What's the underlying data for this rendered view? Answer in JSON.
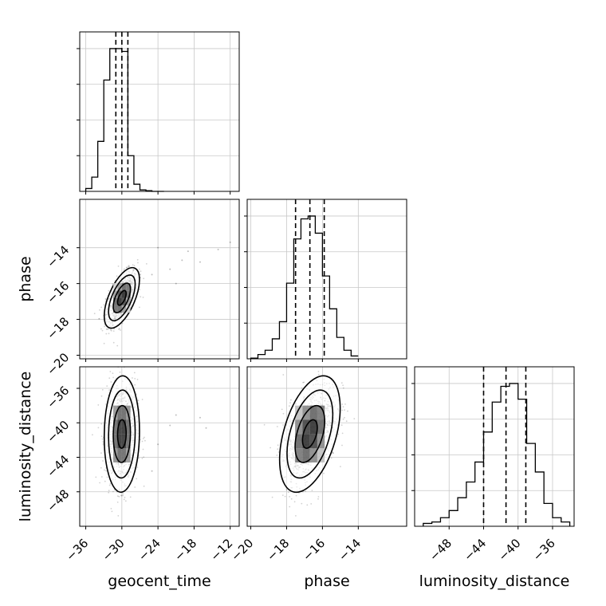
{
  "chart_data": {
    "type": "corner",
    "parameters": [
      "geocent_time",
      "phase",
      "luminosity_distance"
    ],
    "axis_labels": {
      "x": [
        "geocent_time",
        "phase",
        "luminosity_distance"
      ],
      "y": [
        "",
        "phase",
        "luminosity_distance"
      ]
    },
    "ranges": {
      "geocent_time": [
        -37,
        -10.5
      ],
      "phase": [
        -20.2,
        -11.3
      ],
      "luminosity_distance": [
        -52,
        -33.5
      ]
    },
    "ticks": {
      "geocent_time": [
        -36,
        -30,
        -24,
        -18,
        -12
      ],
      "phase": [
        -20,
        -18,
        -16,
        -14
      ],
      "luminosity_distance": [
        -48,
        -44,
        -40,
        -36
      ]
    },
    "tick_labels": {
      "geocent_time": [
        "−36",
        "−30",
        "−24",
        "−18",
        "−12"
      ],
      "phase": [
        "−20",
        "−18",
        "−16",
        "−14"
      ],
      "luminosity_distance": [
        "−48",
        "−44",
        "−40",
        "−36"
      ]
    },
    "histograms": {
      "geocent_time": {
        "bin_edges": [
          -36,
          -35,
          -34,
          -33,
          -32,
          -31,
          -30,
          -29,
          -28,
          -27,
          -26,
          -25,
          -24,
          -23
        ],
        "counts": [
          0.02,
          0.1,
          0.35,
          0.78,
          1.0,
          1.0,
          0.98,
          0.25,
          0.05,
          0.01,
          0.005,
          0.0,
          0.0
        ],
        "quantiles": [
          -31.0,
          -30.0,
          -29.0
        ]
      },
      "phase": {
        "bin_edges": [
          -20,
          -19.6,
          -19.2,
          -18.8,
          -18.4,
          -18.0,
          -17.6,
          -17.2,
          -16.8,
          -16.4,
          -16.0,
          -15.6,
          -15.2,
          -14.8,
          -14.4,
          -14.0
        ],
        "counts": [
          0.005,
          0.03,
          0.06,
          0.14,
          0.26,
          0.53,
          0.84,
          0.98,
          1.0,
          0.88,
          0.58,
          0.35,
          0.15,
          0.06,
          0.02
        ],
        "quantiles": [
          -17.5,
          -16.7,
          -15.9
        ]
      },
      "luminosity_distance": {
        "bin_edges": [
          -51,
          -50,
          -49,
          -48,
          -47,
          -46,
          -45,
          -44,
          -43,
          -42,
          -41,
          -40,
          -39,
          -38,
          -37,
          -36,
          -35,
          -34
        ],
        "counts": [
          0.02,
          0.03,
          0.06,
          0.11,
          0.2,
          0.31,
          0.45,
          0.66,
          0.87,
          0.98,
          1.0,
          0.89,
          0.58,
          0.38,
          0.16,
          0.06,
          0.03,
          0.0
        ],
        "quantiles": [
          -44.0,
          -41.4,
          -39.1
        ]
      }
    },
    "joint": [
      {
        "x": "geocent_time",
        "y": "phase",
        "mean": [
          -30.0,
          -16.8
        ],
        "std": [
          1.3,
          0.75
        ],
        "corr": 0.6,
        "outliers": [
          [
            -25,
            -15.5
          ],
          [
            -22,
            -15.2
          ],
          [
            -20,
            -14.7
          ],
          [
            -19,
            -14.2
          ],
          [
            -17,
            -14.8
          ],
          [
            -14,
            -14.1
          ],
          [
            -12,
            -13.7
          ],
          [
            -24,
            -14.0
          ],
          [
            -21,
            -16.0
          ]
        ]
      },
      {
        "x": "geocent_time",
        "y": "luminosity_distance",
        "mean": [
          -30.0,
          -41.3
        ],
        "std": [
          1.3,
          3.0
        ],
        "corr": 0.05,
        "outliers": [
          [
            -24,
            -42.5
          ],
          [
            -22,
            -40.3
          ],
          [
            -21,
            -39.1
          ],
          [
            -17,
            -39.4
          ],
          [
            -16,
            -40.6
          ],
          [
            -25,
            -45.6
          ]
        ]
      },
      {
        "x": "phase",
        "y": "luminosity_distance",
        "mean": [
          -16.7,
          -41.3
        ],
        "std": [
          0.75,
          3.0
        ],
        "corr": 0.45,
        "outliers": []
      }
    ]
  }
}
